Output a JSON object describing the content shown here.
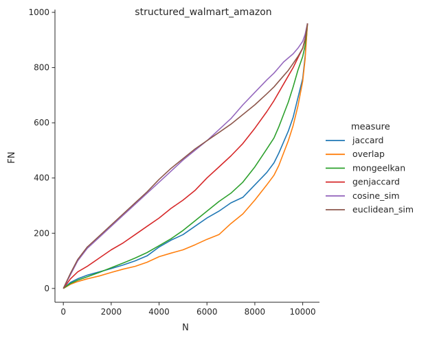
{
  "chart_data": {
    "type": "line",
    "title": "structured_walmart_amazon",
    "xlabel": "N",
    "ylabel": "FN",
    "xlim": [
      -350,
      10700
    ],
    "ylim": [
      -50,
      1010
    ],
    "xticks": [
      0,
      2000,
      4000,
      6000,
      8000,
      10000
    ],
    "yticks": [
      0,
      200,
      400,
      600,
      800,
      1000
    ],
    "xtick_labels": [
      "0",
      "2000",
      "4000",
      "6000",
      "8000",
      "10000"
    ],
    "ytick_labels": [
      "0",
      "200",
      "400",
      "600",
      "800",
      "1000"
    ],
    "grid": false,
    "legend_position": "right",
    "legend_title": "measure",
    "series": [
      {
        "name": "jaccard",
        "color": "#1f77b4",
        "x": [
          0,
          300,
          600,
          1000,
          1500,
          2000,
          2500,
          3000,
          3500,
          4000,
          4500,
          5000,
          5500,
          6000,
          6500,
          7000,
          7500,
          8000,
          8500,
          8800,
          9000,
          9200,
          9400,
          9600,
          9800,
          10000,
          10100,
          10200
        ],
        "y": [
          0,
          22,
          35,
          48,
          60,
          72,
          85,
          100,
          118,
          150,
          175,
          195,
          225,
          255,
          280,
          310,
          330,
          375,
          420,
          455,
          490,
          530,
          570,
          620,
          690,
          760,
          840,
          960
        ]
      },
      {
        "name": "overlap",
        "color": "#ff7f0e",
        "x": [
          0,
          300,
          600,
          1000,
          1500,
          2000,
          2500,
          3000,
          3500,
          4000,
          4500,
          5000,
          5500,
          6000,
          6500,
          7000,
          7500,
          8000,
          8500,
          8800,
          9000,
          9200,
          9400,
          9600,
          9800,
          10000,
          10100,
          10200
        ],
        "y": [
          0,
          15,
          25,
          35,
          45,
          58,
          70,
          80,
          95,
          115,
          128,
          140,
          158,
          178,
          195,
          235,
          270,
          320,
          375,
          410,
          445,
          490,
          535,
          590,
          660,
          750,
          830,
          960
        ]
      },
      {
        "name": "mongeelkan",
        "color": "#2ca02c",
        "x": [
          0,
          300,
          600,
          1000,
          1500,
          2000,
          2500,
          3000,
          3500,
          4000,
          4500,
          5000,
          5500,
          6000,
          6500,
          7000,
          7500,
          8000,
          8500,
          8800,
          9000,
          9200,
          9400,
          9600,
          9800,
          10000,
          10100,
          10200
        ],
        "y": [
          0,
          18,
          30,
          42,
          58,
          75,
          92,
          110,
          130,
          155,
          180,
          210,
          245,
          280,
          315,
          345,
          385,
          440,
          505,
          545,
          585,
          630,
          675,
          730,
          790,
          840,
          880,
          960
        ]
      },
      {
        "name": "genjaccard",
        "color": "#d62728",
        "x": [
          0,
          300,
          600,
          1000,
          1500,
          2000,
          2500,
          3000,
          3500,
          4000,
          4500,
          5000,
          5500,
          6000,
          6500,
          7000,
          7500,
          8000,
          8500,
          8800,
          9000,
          9200,
          9400,
          9600,
          9800,
          10000,
          10100,
          10200
        ],
        "y": [
          0,
          35,
          60,
          80,
          110,
          140,
          165,
          195,
          225,
          255,
          290,
          320,
          355,
          400,
          440,
          480,
          525,
          580,
          640,
          680,
          710,
          740,
          770,
          800,
          835,
          870,
          900,
          960
        ]
      },
      {
        "name": "cosine_sim",
        "color": "#9467bd",
        "x": [
          0,
          300,
          600,
          1000,
          1500,
          2000,
          2500,
          3000,
          3500,
          4000,
          4500,
          5000,
          5500,
          6000,
          6500,
          7000,
          7500,
          8000,
          8500,
          8800,
          9000,
          9200,
          9400,
          9600,
          9800,
          10000,
          10100,
          10200
        ],
        "y": [
          0,
          50,
          100,
          145,
          185,
          225,
          265,
          305,
          345,
          385,
          425,
          465,
          500,
          535,
          575,
          615,
          665,
          710,
          755,
          780,
          800,
          820,
          835,
          850,
          870,
          895,
          920,
          960
        ]
      },
      {
        "name": "euclidean_sim",
        "color": "#8c564b",
        "x": [
          0,
          300,
          600,
          1000,
          1500,
          2000,
          2500,
          3000,
          3500,
          4000,
          4500,
          5000,
          5500,
          6000,
          6500,
          7000,
          7500,
          8000,
          8500,
          8800,
          9000,
          9200,
          9400,
          9600,
          9800,
          10000,
          10100,
          10200
        ],
        "y": [
          0,
          55,
          105,
          150,
          190,
          230,
          270,
          310,
          350,
          395,
          435,
          470,
          505,
          535,
          565,
          595,
          630,
          665,
          705,
          730,
          750,
          770,
          790,
          815,
          840,
          870,
          905,
          960
        ]
      }
    ]
  }
}
